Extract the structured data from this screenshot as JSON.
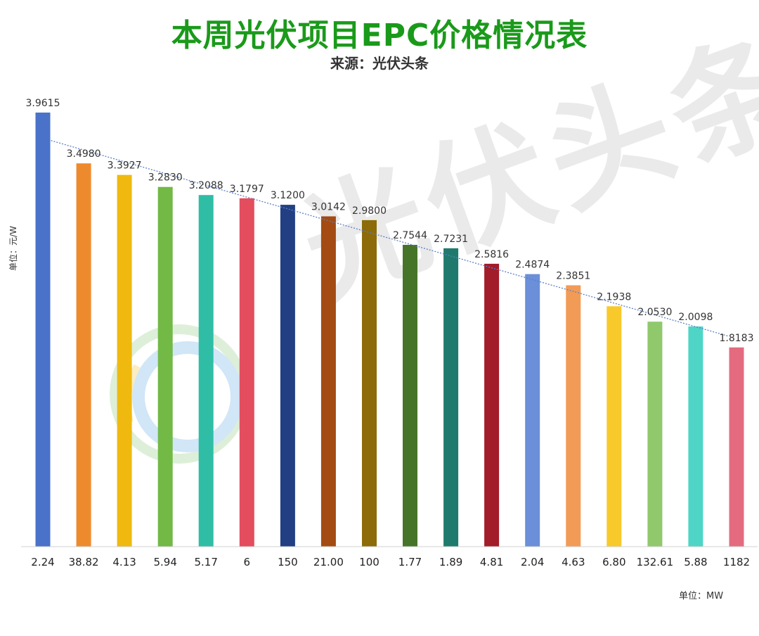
{
  "header": {
    "title": "本周光伏项目EPC价格情况表",
    "source": "来源：光伏头条"
  },
  "watermark": {
    "text": "光伏头条"
  },
  "chart_data": {
    "type": "bar",
    "title": "本周光伏项目EPC价格情况表",
    "subtitle": "来源：光伏头条",
    "ylabel": "单位：元/W",
    "xlabel": "单位：MW",
    "categories": [
      "2.24",
      "38.82",
      "4.13",
      "5.94",
      "5.17",
      "6",
      "150",
      "21.00",
      "100",
      "1.77",
      "1.89",
      "4.81",
      "2.04",
      "4.63",
      "6.80",
      "132.61",
      "5.88",
      "1182"
    ],
    "values": [
      3.9615,
      3.498,
      3.3927,
      3.283,
      3.2088,
      3.1797,
      3.12,
      3.0142,
      2.98,
      2.7544,
      2.7231,
      2.5816,
      2.4874,
      2.3851,
      2.1938,
      2.053,
      2.0098,
      1.8183
    ],
    "value_labels": [
      "3.9615",
      "3.4980",
      "3.3927",
      "3.2830",
      "3.2088",
      "3.1797",
      "3.1200",
      "3.0142",
      "2.9800",
      "2.7544",
      "2.7231",
      "2.5816",
      "2.4874",
      "2.3851",
      "2.1938",
      "2.0530",
      "2.0098",
      "1.8183"
    ],
    "colors": [
      "#4a72c9",
      "#ee8a2e",
      "#f0b90f",
      "#72b946",
      "#2fbda6",
      "#e44d5e",
      "#223f84",
      "#a34b12",
      "#8c6b08",
      "#467529",
      "#1f7a6d",
      "#a21c2a",
      "#6b8fd8",
      "#f29b56",
      "#f8c92a",
      "#90c96c",
      "#4fd5c6",
      "#e46b7f"
    ],
    "trendline": {
      "type": "linear",
      "color": "#5b7fc6",
      "style": "dotted"
    },
    "ylim": [
      0,
      4.0
    ],
    "grid": false,
    "legend": "none"
  }
}
